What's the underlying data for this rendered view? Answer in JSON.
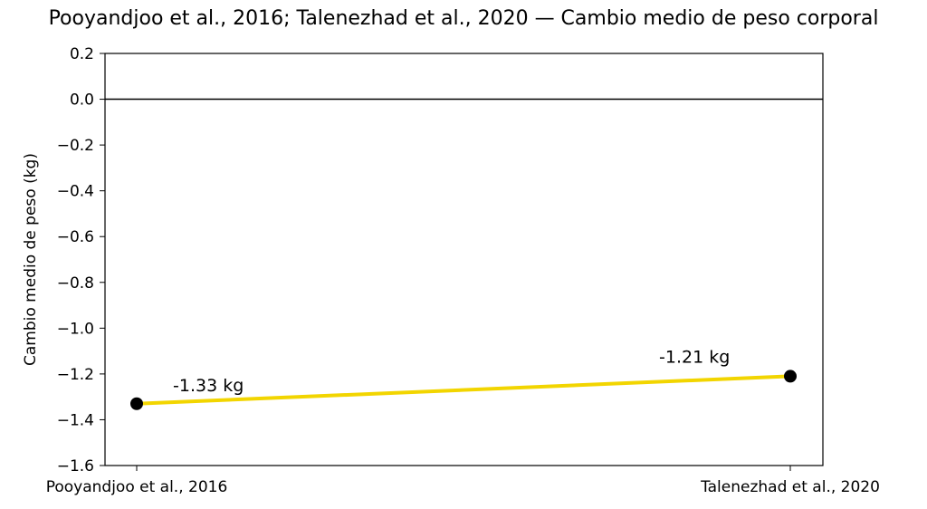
{
  "chart_data": {
    "type": "line",
    "title": "Pooyandjoo et al., 2016; Talenezhad et al., 2020 — Cambio medio de peso corporal",
    "xlabel": "",
    "ylabel": "Cambio medio de peso (kg)",
    "categories": [
      "Pooyandjoo et al., 2016",
      "Talenezhad et al., 2020"
    ],
    "series": [
      {
        "values": [
          -1.33,
          -1.21
        ],
        "color": "#f2d500",
        "marker_color": "#000000"
      }
    ],
    "data_labels": [
      "-1.33 kg",
      "-1.21 kg"
    ],
    "ylim": [
      -1.6,
      0.2
    ],
    "yticks": [
      0.2,
      0.0,
      -0.2,
      -0.4,
      -0.6,
      -0.8,
      -1.0,
      -1.2,
      -1.4,
      -1.6
    ],
    "ytick_labels": [
      "0.2",
      "0.0",
      "−0.2",
      "−0.4",
      "−0.6",
      "−0.8",
      "−1.0",
      "−1.2",
      "−1.4",
      "−1.6"
    ],
    "reference_line": 0.0,
    "grid": false,
    "legend": false
  }
}
